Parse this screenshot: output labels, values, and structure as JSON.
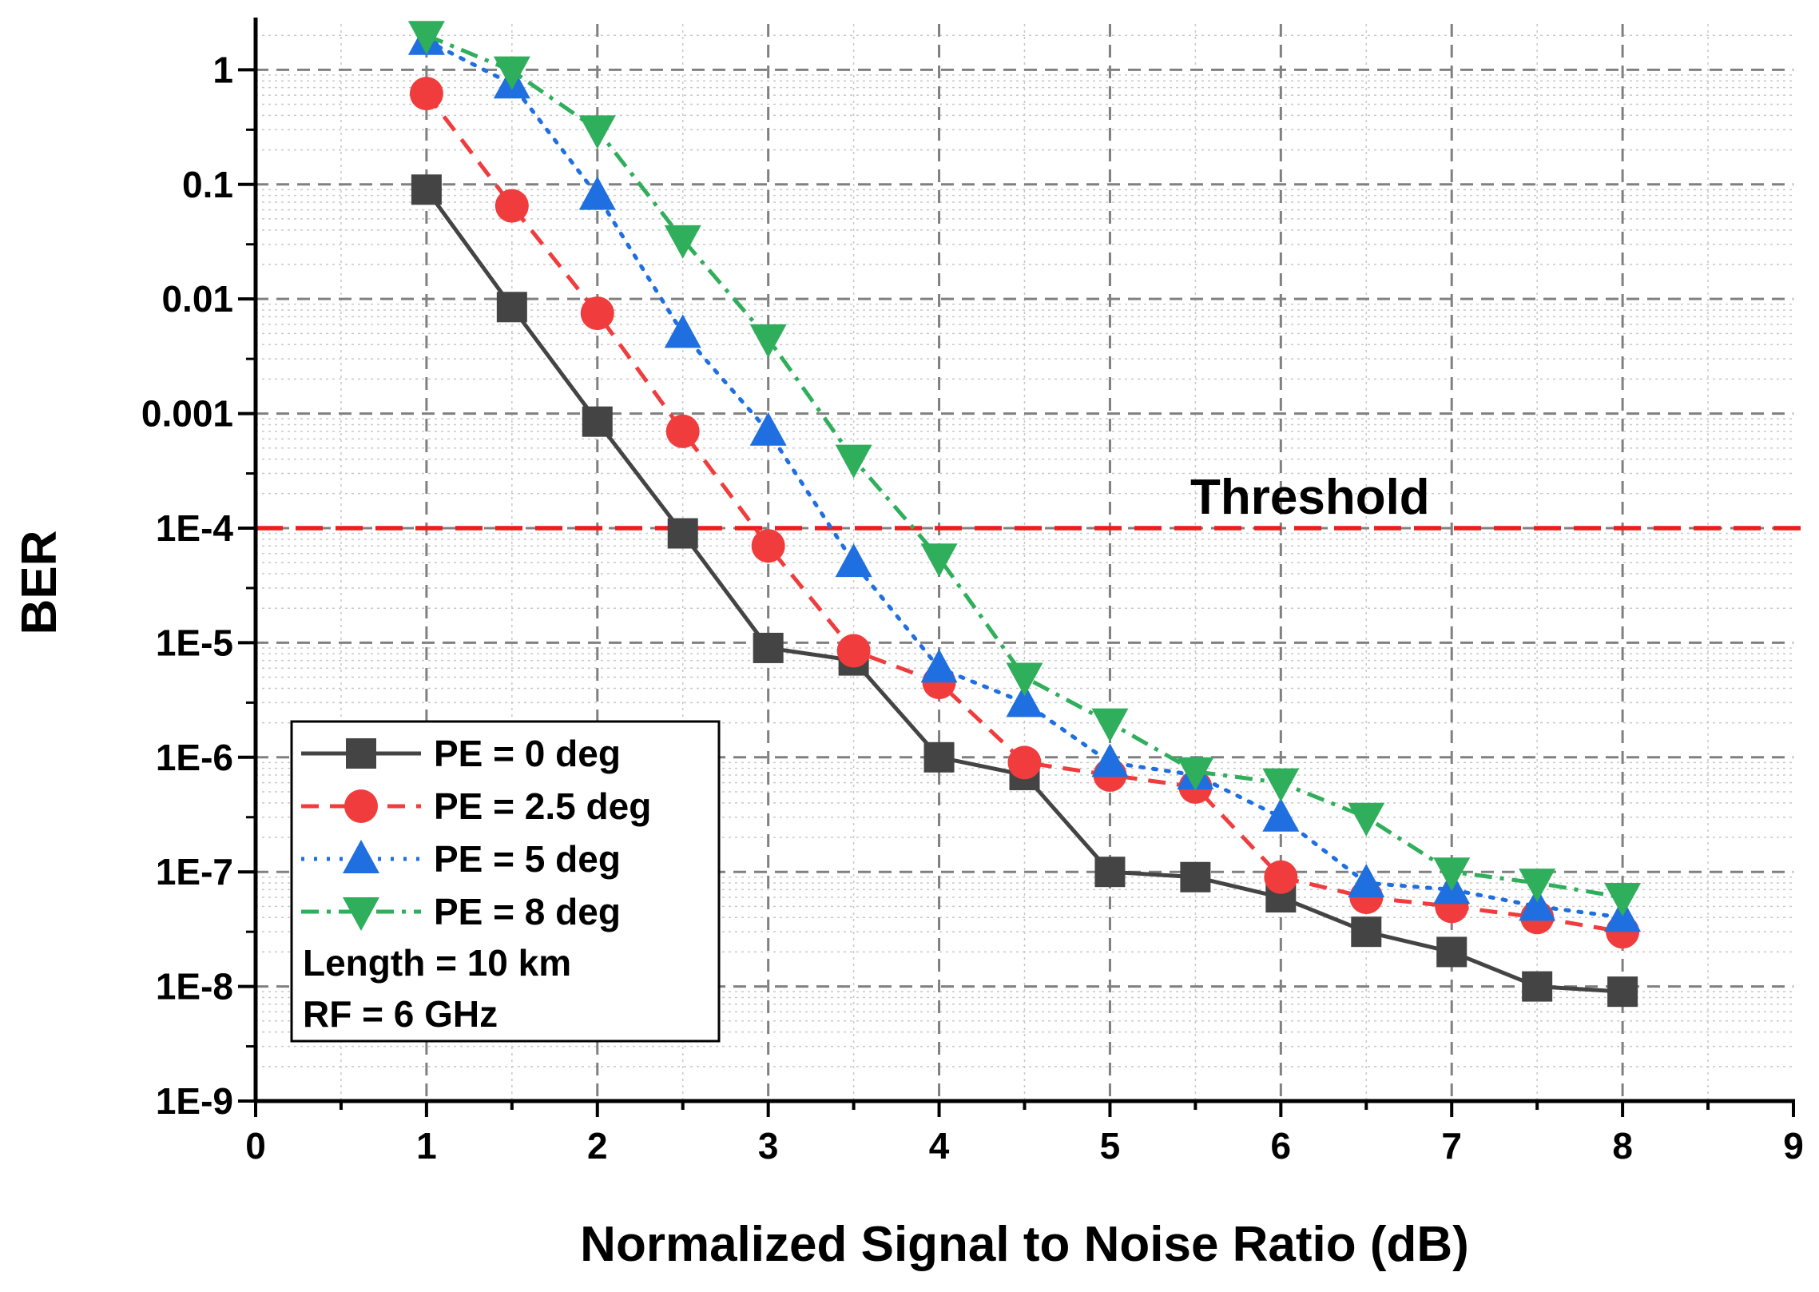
{
  "chart_data": {
    "type": "line",
    "title": "",
    "xlabel": "Normalized Signal to Noise Ratio (dB)",
    "ylabel": "BER",
    "xlim": [
      0,
      9
    ],
    "ylim": [
      1e-09,
      2.5
    ],
    "yscale": "log",
    "xticks": [
      0,
      1,
      2,
      3,
      4,
      5,
      6,
      7,
      8,
      9
    ],
    "xtick_labels": [
      "0",
      "1",
      "2",
      "3",
      "4",
      "5",
      "6",
      "7",
      "8",
      "9"
    ],
    "yticks": [
      1e-09,
      1e-08,
      1e-07,
      1e-06,
      1e-05,
      0.0001,
      0.001,
      0.01,
      0.1,
      1
    ],
    "ytick_labels": [
      "1E-9",
      "1E-8",
      "1E-7",
      "1E-6",
      "1E-5",
      "1E-4",
      "0.001",
      "0.01",
      "0.1",
      "1"
    ],
    "grid": true,
    "legend_position": "bottom-left",
    "x": [
      1,
      1.5,
      2,
      2.5,
      3,
      3.5,
      4,
      4.5,
      5,
      5.5,
      6,
      6.5,
      7,
      7.5,
      8
    ],
    "series": [
      {
        "name": "PE = 0 deg",
        "color": "#444444",
        "marker": "square",
        "line_style": "solid",
        "values": [
          0.09,
          0.0085,
          0.00085,
          9e-05,
          9e-06,
          7e-06,
          1e-06,
          7e-07,
          1e-07,
          9e-08,
          6e-08,
          3e-08,
          2e-08,
          1e-08,
          9e-09
        ]
      },
      {
        "name": "PE = 2.5 deg",
        "color": "#f03c3c",
        "marker": "circle",
        "line_style": "dashed",
        "values": [
          0.62,
          0.065,
          0.0075,
          0.0007,
          7e-05,
          8.5e-06,
          4.5e-06,
          9e-07,
          7e-07,
          5.5e-07,
          9e-08,
          6e-08,
          5e-08,
          4e-08,
          3e-08
        ]
      },
      {
        "name": "PE = 5 deg",
        "color": "#1f6fe0",
        "marker": "triangle-up",
        "line_style": "dotted",
        "values": [
          1.8,
          0.75,
          0.08,
          0.005,
          0.0007,
          5e-05,
          6e-06,
          3e-06,
          9e-07,
          7e-07,
          3e-07,
          8e-08,
          7e-08,
          5e-08,
          4e-08
        ]
      },
      {
        "name": "PE = 8 deg",
        "color": "#2fae5b",
        "marker": "triangle-down",
        "line_style": "dashdot",
        "values": [
          2.0,
          0.98,
          0.3,
          0.033,
          0.0045,
          0.0004,
          5.5e-05,
          5e-06,
          2e-06,
          7.5e-07,
          6e-07,
          3e-07,
          1e-07,
          8e-08,
          6e-08
        ]
      }
    ],
    "threshold": {
      "value": 0.0001,
      "label": "Threshold",
      "color": "#ee1c1c"
    },
    "annotations": [
      "Length = 10 km",
      "RF = 6 GHz"
    ]
  }
}
